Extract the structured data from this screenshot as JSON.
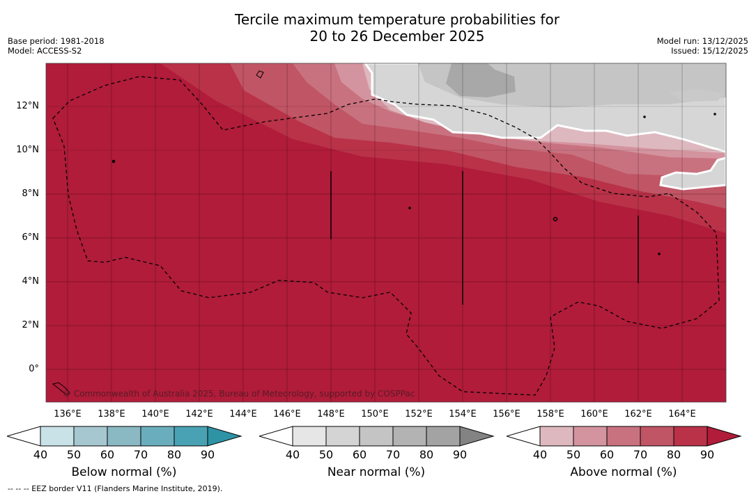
{
  "title": {
    "line1": "Tercile maximum temperature probabilities for",
    "line2": "20 to 26 December 2025"
  },
  "meta": {
    "base_period": "Base period: 1981-2018",
    "model": "Model: ACCESS-S2",
    "model_run": "Model run: 13/12/2025",
    "issued": "Issued: 15/12/2025"
  },
  "map": {
    "lat_labels": [
      "12°N",
      "10°N",
      "8°N",
      "6°N",
      "4°N",
      "2°N",
      "0°"
    ],
    "lon_labels": [
      "136°E",
      "138°E",
      "140°E",
      "142°E",
      "144°E",
      "146°E",
      "148°E",
      "150°E",
      "152°E",
      "154°E",
      "156°E",
      "158°E",
      "160°E",
      "162°E",
      "164°E"
    ],
    "copyright": "© Commonwealth of Australia 2025, Bureau of Meteorology, supported by COSPPac"
  },
  "colorbars": [
    {
      "title": "Below normal (%)",
      "ticks": [
        "40",
        "50",
        "60",
        "70",
        "80",
        "90"
      ],
      "colors": [
        "#ffffff",
        "#c9e2e8",
        "#a6c7cf",
        "#8ab8c3",
        "#6aaebd",
        "#49a2b3",
        "#2f93a6"
      ]
    },
    {
      "title": "Near normal (%)",
      "ticks": [
        "40",
        "50",
        "60",
        "70",
        "80",
        "90"
      ],
      "colors": [
        "#ffffff",
        "#e6e6e6",
        "#d4d4d4",
        "#c4c4c4",
        "#b3b3b3",
        "#a3a3a3",
        "#838383"
      ]
    },
    {
      "title": "Above normal (%)",
      "ticks": [
        "40",
        "50",
        "60",
        "70",
        "80",
        "90"
      ],
      "colors": [
        "#ffffff",
        "#deb8bf",
        "#d4949f",
        "#c9727f",
        "#c05565",
        "#b93248",
        "#b01c3a"
      ]
    }
  ],
  "footnote": "--  --  -- EEZ border V11 (Flanders Marine Institute, 2019)."
}
